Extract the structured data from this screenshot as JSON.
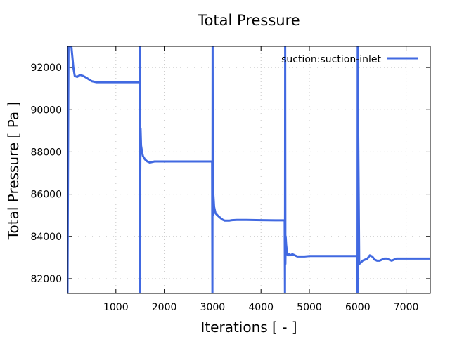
{
  "chart_data": {
    "type": "line",
    "title": "Total Pressure",
    "xlabel": "Iterations [ - ]",
    "ylabel": "Total Pressure [ Pa ]",
    "xlim": [
      0,
      7500
    ],
    "ylim": [
      81300,
      93000
    ],
    "xticks": [
      1000,
      2000,
      3000,
      4000,
      5000,
      6000,
      7000
    ],
    "yticks": [
      82000,
      84000,
      86000,
      88000,
      90000,
      92000
    ],
    "tick_labels_x": [
      "1000",
      "2000",
      "3000",
      "4000",
      "5000",
      "6000",
      "7000"
    ],
    "tick_labels_y": [
      "82000",
      "84000",
      "86000",
      "88000",
      "90000",
      "92000"
    ],
    "grid": true,
    "legend_position": "top-right",
    "series": [
      {
        "name": "suction:suction-inlet",
        "color": "#4169E1",
        "x": [
          0,
          20,
          40,
          60,
          80,
          100,
          120,
          150,
          200,
          260,
          320,
          400,
          500,
          600,
          800,
          1000,
          1200,
          1490,
          1495,
          1500,
          1505,
          1510,
          1520,
          1540,
          1560,
          1600,
          1650,
          1700,
          1800,
          1900,
          2000,
          2200,
          2500,
          2990,
          2995,
          3000,
          3005,
          3010,
          3030,
          3060,
          3100,
          3150,
          3200,
          3250,
          3300,
          3350,
          3400,
          3500,
          3700,
          4000,
          4300,
          4490,
          4495,
          4500,
          4505,
          4510,
          4520,
          4540,
          4560,
          4580,
          4600,
          4650,
          4700,
          4750,
          4800,
          4900,
          5000,
          5200,
          5500,
          5990,
          5995,
          6000,
          6005,
          6010,
          6030,
          6060,
          6100,
          6150,
          6200,
          6250,
          6300,
          6350,
          6400,
          6450,
          6500,
          6550,
          6600,
          6650,
          6700,
          6750,
          6800,
          6850,
          6900,
          7000,
          7200,
          7500
        ],
        "y": [
          81300,
          93000,
          93000,
          93000,
          93000,
          92500,
          92000,
          91600,
          91550,
          91650,
          91600,
          91500,
          91350,
          91300,
          91300,
          91300,
          91300,
          91300,
          81300,
          93000,
          87000,
          89100,
          88300,
          88000,
          87800,
          87650,
          87550,
          87500,
          87550,
          87550,
          87550,
          87550,
          87550,
          87550,
          81300,
          93000,
          85000,
          86200,
          85400,
          85100,
          85000,
          84900,
          84800,
          84750,
          84750,
          84750,
          84770,
          84780,
          84780,
          84770,
          84760,
          84760,
          81300,
          93000,
          82700,
          84000,
          83600,
          83150,
          83100,
          83150,
          83100,
          83150,
          83100,
          83050,
          83050,
          83050,
          83070,
          83070,
          83070,
          83070,
          81300,
          93000,
          81400,
          88800,
          82700,
          82750,
          82850,
          82900,
          82950,
          83100,
          83050,
          82900,
          82850,
          82850,
          82900,
          82950,
          82950,
          82900,
          82850,
          82900,
          82950,
          82950,
          82950,
          82950,
          82950,
          82950
        ]
      }
    ]
  }
}
